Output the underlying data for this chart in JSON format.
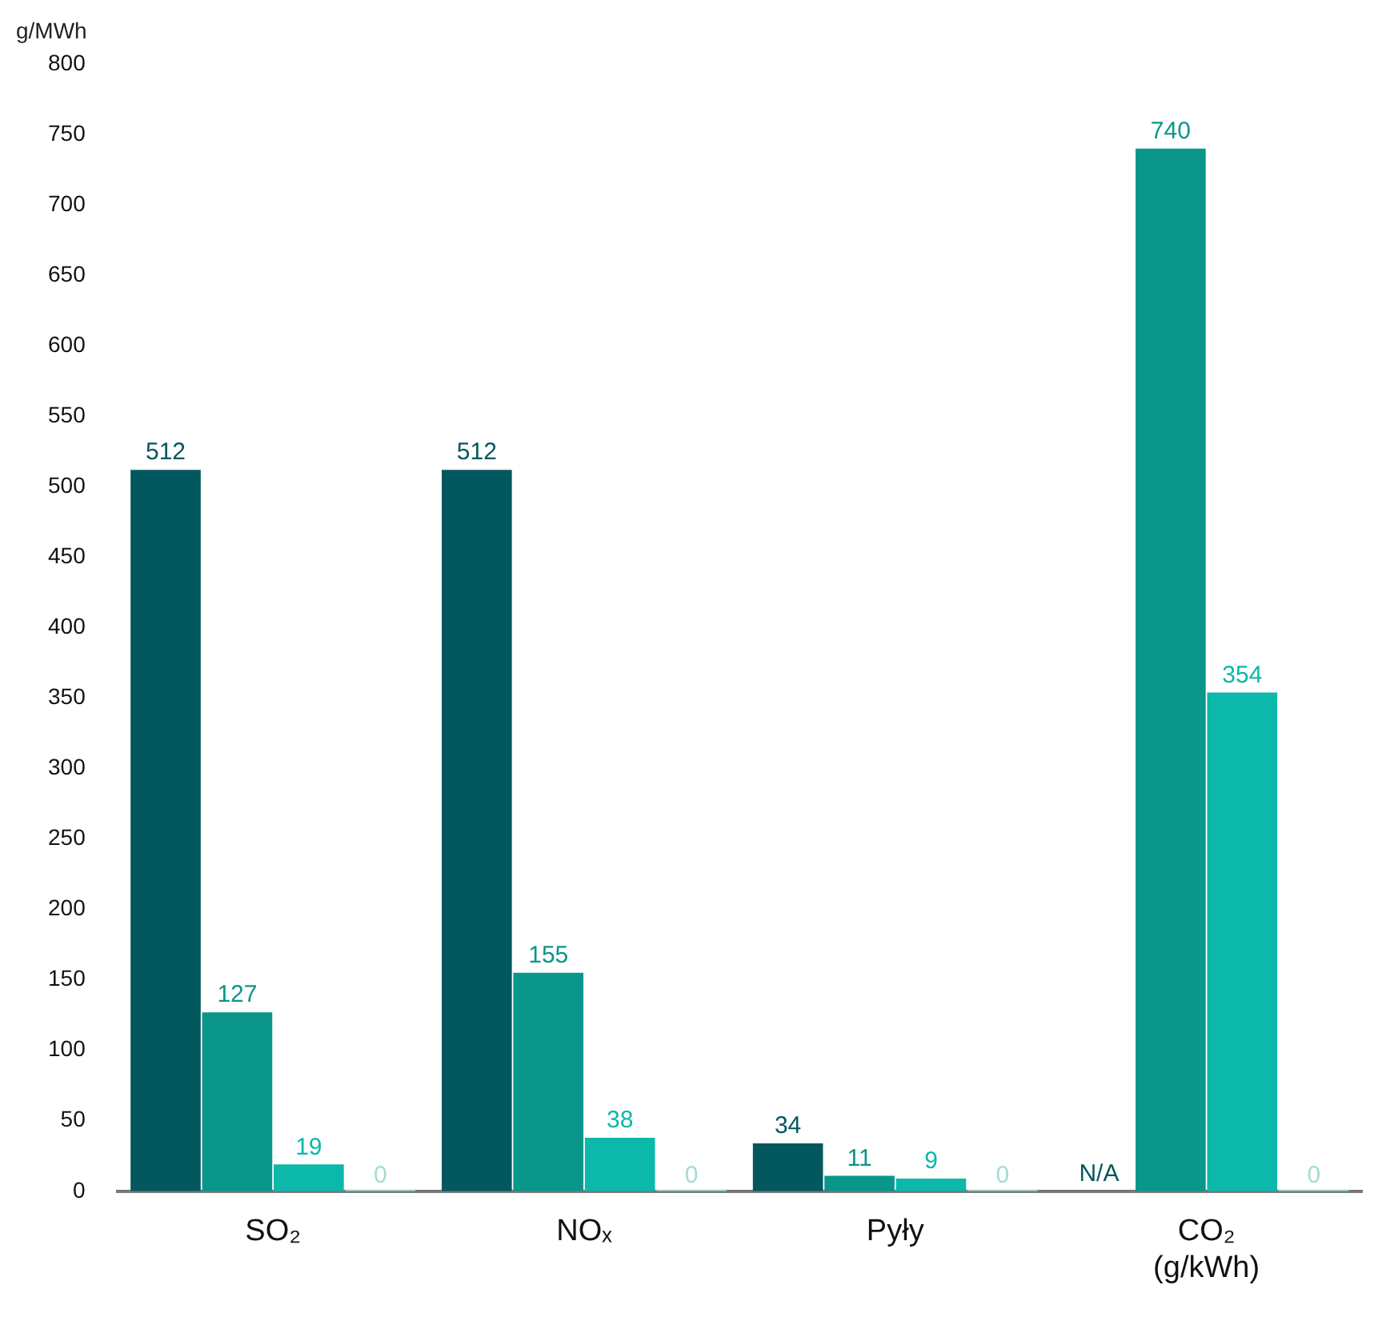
{
  "chart_data": {
    "type": "bar",
    "ylabel": "g/MWh",
    "categories": [
      "SO₂",
      "NOₓ",
      "Pyły",
      "CO₂ (g/kWh)"
    ],
    "series": [
      {
        "color": "#02585e",
        "values": [
          512,
          512,
          34,
          null
        ],
        "value_labels": [
          "512",
          "512",
          "34",
          "N/A"
        ]
      },
      {
        "color": "#0a968b",
        "values": [
          127,
          155,
          11,
          740
        ],
        "value_labels": [
          "127",
          "155",
          "11",
          "740"
        ]
      },
      {
        "color": "#0cb8aa",
        "values": [
          19,
          38,
          9,
          354
        ],
        "value_labels": [
          "19",
          "38",
          "9",
          "354"
        ]
      },
      {
        "color": "#a3dbd2",
        "values": [
          0,
          0,
          0,
          0
        ],
        "value_labels": [
          "0",
          "0",
          "0",
          "0"
        ]
      }
    ],
    "ylim": [
      0,
      800
    ],
    "yticks": [
      0,
      50,
      100,
      150,
      200,
      250,
      300,
      350,
      400,
      450,
      500,
      550,
      600,
      650,
      700,
      750,
      800
    ]
  }
}
